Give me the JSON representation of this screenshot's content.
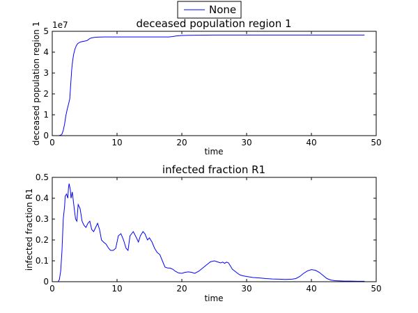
{
  "figure": {
    "legend_label": "None",
    "line_color": "#0000ff"
  },
  "chart_data": [
    {
      "type": "line",
      "title": "deceased population region 1",
      "xlabel": "time",
      "ylabel": "deceased population region 1",
      "offset_label": "1e7",
      "xlim": [
        0,
        50
      ],
      "ylim": [
        0,
        5
      ],
      "xticks": [
        0,
        10,
        20,
        30,
        40,
        50
      ],
      "yticks": [
        0,
        1,
        2,
        3,
        4,
        5
      ],
      "grid": false,
      "legend": "top-center",
      "series": [
        {
          "name": "None",
          "x": [
            0,
            1,
            1.3,
            1.5,
            1.7,
            1.9,
            2.1,
            2.3,
            2.5,
            2.7,
            2.8,
            2.9,
            3.0,
            3.1,
            3.2,
            3.3,
            3.5,
            3.7,
            3.9,
            4.2,
            4.5,
            5.0,
            5.4,
            5.7,
            6.0,
            6.5,
            7.0,
            8.0,
            10,
            12,
            15,
            18,
            18.6,
            19.2,
            20,
            21,
            25,
            30,
            40,
            48.2
          ],
          "y": [
            0,
            0,
            0.02,
            0.08,
            0.25,
            0.55,
            0.95,
            1.25,
            1.5,
            1.75,
            2.2,
            2.7,
            3.15,
            3.45,
            3.7,
            3.9,
            4.15,
            4.3,
            4.4,
            4.47,
            4.5,
            4.53,
            4.56,
            4.63,
            4.68,
            4.71,
            4.72,
            4.73,
            4.73,
            4.73,
            4.73,
            4.73,
            4.75,
            4.78,
            4.8,
            4.81,
            4.82,
            4.82,
            4.82,
            4.82
          ]
        }
      ]
    },
    {
      "type": "line",
      "title": "infected fraction R1",
      "xlabel": "time",
      "ylabel": "infected fraction R1",
      "xlim": [
        0,
        50
      ],
      "ylim": [
        0,
        0.5
      ],
      "xticks": [
        0,
        10,
        20,
        30,
        40,
        50
      ],
      "yticks": [
        0.0,
        0.1,
        0.2,
        0.3,
        0.4,
        0.5
      ],
      "grid": false,
      "series": [
        {
          "name": "None",
          "x": [
            0,
            0.9,
            1.1,
            1.3,
            1.5,
            1.7,
            1.9,
            2.0,
            2.2,
            2.4,
            2.5,
            2.6,
            2.8,
            2.9,
            3.1,
            3.2,
            3.4,
            3.6,
            3.8,
            4.0,
            4.3,
            4.6,
            4.9,
            5.2,
            5.5,
            5.8,
            6.1,
            6.4,
            6.7,
            7.0,
            7.3,
            7.6,
            7.9,
            8.3,
            8.7,
            9.0,
            9.4,
            9.8,
            10.2,
            10.6,
            11.0,
            11.4,
            11.7,
            12.0,
            12.5,
            13.0,
            13.3,
            13.6,
            14.0,
            14.3,
            14.7,
            15.0,
            15.4,
            15.8,
            16.2,
            16.6,
            17.0,
            17.4,
            17.8,
            18.2,
            18.6,
            19.0,
            19.5,
            20.0,
            20.5,
            21.0,
            21.5,
            22.0,
            22.6,
            23.2,
            23.8,
            24.4,
            25.0,
            25.5,
            26.0,
            26.3,
            26.6,
            26.9,
            27.2,
            27.5,
            27.8,
            28.2,
            28.6,
            29.0,
            29.5,
            30.0,
            31.0,
            32.0,
            33.0,
            34.0,
            35.0,
            36.0,
            37.0,
            37.6,
            38.2,
            38.8,
            39.4,
            40.0,
            40.6,
            41.2,
            41.8,
            42.4,
            43.0,
            43.6,
            44.2,
            45.0,
            46.0,
            47.0,
            48.2
          ],
          "y": [
            0,
            0,
            0.01,
            0.05,
            0.15,
            0.3,
            0.36,
            0.41,
            0.42,
            0.4,
            0.45,
            0.47,
            0.44,
            0.4,
            0.43,
            0.4,
            0.35,
            0.3,
            0.29,
            0.37,
            0.35,
            0.29,
            0.27,
            0.26,
            0.28,
            0.29,
            0.25,
            0.24,
            0.26,
            0.28,
            0.25,
            0.2,
            0.19,
            0.18,
            0.16,
            0.15,
            0.15,
            0.16,
            0.22,
            0.23,
            0.2,
            0.16,
            0.15,
            0.22,
            0.24,
            0.21,
            0.19,
            0.22,
            0.24,
            0.23,
            0.2,
            0.21,
            0.19,
            0.16,
            0.14,
            0.13,
            0.1,
            0.07,
            0.066,
            0.065,
            0.06,
            0.05,
            0.042,
            0.04,
            0.045,
            0.047,
            0.045,
            0.04,
            0.05,
            0.065,
            0.08,
            0.095,
            0.1,
            0.095,
            0.09,
            0.094,
            0.088,
            0.094,
            0.09,
            0.075,
            0.06,
            0.05,
            0.04,
            0.032,
            0.028,
            0.025,
            0.02,
            0.018,
            0.015,
            0.013,
            0.012,
            0.011,
            0.012,
            0.015,
            0.025,
            0.04,
            0.052,
            0.058,
            0.055,
            0.045,
            0.03,
            0.015,
            0.008,
            0.005,
            0.004,
            0.003,
            0.003,
            0.002,
            0.002
          ]
        }
      ]
    }
  ]
}
